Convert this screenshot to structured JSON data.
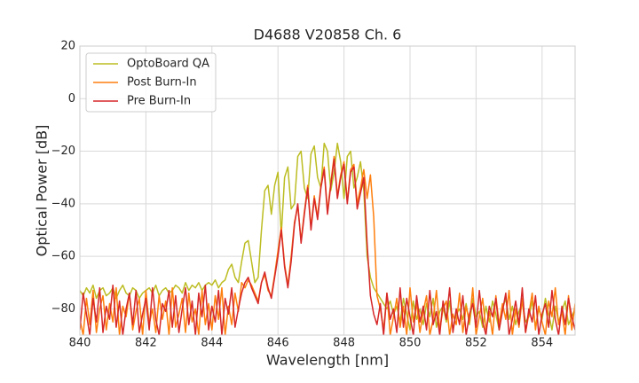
{
  "chart_data": {
    "type": "line",
    "title": "D4688 V20858 Ch. 6",
    "x_label": "Wavelength [nm]",
    "y_label": "Optical Power [dB]",
    "xlim": [
      840,
      855
    ],
    "ylim": [
      -90,
      20
    ],
    "xticks": [
      840,
      842,
      844,
      846,
      848,
      850,
      852,
      854
    ],
    "yticks": [
      {
        "value": -80,
        "label": "−80"
      },
      {
        "value": -60,
        "label": "−60"
      },
      {
        "value": -40,
        "label": "−40"
      },
      {
        "value": -20,
        "label": "−20"
      },
      0,
      20
    ],
    "grid": true,
    "legend": "upper left",
    "x": [
      840,
      840.1,
      840.2,
      840.3,
      840.4,
      840.5,
      840.6,
      840.7,
      840.8,
      840.9,
      841,
      841.1,
      841.2,
      841.3,
      841.4,
      841.5,
      841.6,
      841.7,
      841.8,
      841.9,
      842,
      842.1,
      842.2,
      842.3,
      842.4,
      842.5,
      842.6,
      842.7,
      842.8,
      842.9,
      843,
      843.1,
      843.2,
      843.3,
      843.4,
      843.5,
      843.6,
      843.7,
      843.8,
      843.9,
      844,
      844.1,
      844.2,
      844.3,
      844.4,
      844.5,
      844.6,
      844.7,
      844.8,
      844.9,
      845,
      845.1,
      845.2,
      845.3,
      845.4,
      845.5,
      845.6,
      845.7,
      845.8,
      845.9,
      846,
      846.1,
      846.2,
      846.3,
      846.4,
      846.5,
      846.6,
      846.7,
      846.8,
      846.9,
      847,
      847.1,
      847.2,
      847.3,
      847.4,
      847.5,
      847.6,
      847.7,
      847.8,
      847.9,
      848,
      848.1,
      848.2,
      848.3,
      848.4,
      848.5,
      848.6,
      848.7,
      848.8,
      848.9,
      849,
      849.1,
      849.2,
      849.3,
      849.4,
      849.5,
      849.6,
      849.7,
      849.8,
      849.9,
      850,
      850.1,
      850.2,
      850.3,
      850.4,
      850.5,
      850.6,
      850.7,
      850.8,
      850.9,
      851,
      851.1,
      851.2,
      851.3,
      851.4,
      851.5,
      851.6,
      851.7,
      851.8,
      851.9,
      852,
      852.1,
      852.2,
      852.3,
      852.4,
      852.5,
      852.6,
      852.7,
      852.8,
      852.9,
      853,
      853.1,
      853.2,
      853.3,
      853.4,
      853.5,
      853.6,
      853.7,
      853.8,
      853.9,
      854,
      854.1,
      854.2,
      854.3,
      854.4,
      854.5,
      854.6,
      854.7,
      854.8,
      854.9,
      855
    ],
    "series": [
      {
        "name": "OptoBoard QA",
        "color": "#bcbd22",
        "values": [
          -73,
          -75,
          -72,
          -74,
          -71,
          -76,
          -73,
          -72,
          -75,
          -74,
          -72,
          -76,
          -73,
          -71,
          -74,
          -75,
          -72,
          -73,
          -76,
          -74,
          -73,
          -72,
          -74,
          -71,
          -75,
          -73,
          -72,
          -74,
          -73,
          -71,
          -72,
          -74,
          -70,
          -73,
          -71,
          -72,
          -70,
          -73,
          -71,
          -70,
          -71,
          -69,
          -72,
          -70,
          -69,
          -65,
          -63,
          -68,
          -70,
          -62,
          -55,
          -54,
          -62,
          -70,
          -68,
          -50,
          -35,
          -33,
          -44,
          -33,
          -28,
          -52,
          -30,
          -26,
          -42,
          -40,
          -22,
          -20,
          -34,
          -38,
          -21,
          -18,
          -30,
          -34,
          -17,
          -20,
          -35,
          -28,
          -17,
          -24,
          -38,
          -22,
          -20,
          -34,
          -30,
          -24,
          -35,
          -60,
          -68,
          -72,
          -74,
          -76,
          -78,
          -80,
          -77,
          -82,
          -79,
          -85,
          -76,
          -82,
          -88,
          -77,
          -84,
          -80,
          -86,
          -78,
          -83,
          -76,
          -87,
          -81,
          -79,
          -85,
          -77,
          -88,
          -82,
          -80,
          -84,
          -78,
          -86,
          -76,
          -83,
          -81,
          -87,
          -79,
          -85,
          -77,
          -82,
          -88,
          -80,
          -76,
          -84,
          -79,
          -86,
          -81,
          -78,
          -85,
          -83,
          -77,
          -87,
          -80,
          -84,
          -76,
          -82,
          -88,
          -79,
          -85,
          -81,
          -77,
          -86,
          -83,
          -80
        ]
      },
      {
        "name": "Post Burn-In",
        "color": "#ff7f0e",
        "values": [
          -84,
          -90,
          -76,
          -86,
          -73,
          -89,
          -80,
          -75,
          -88,
          -78,
          -85,
          -72,
          -90,
          -79,
          -83,
          -74,
          -88,
          -81,
          -76,
          -90,
          -73,
          -86,
          -80,
          -89,
          -75,
          -84,
          -77,
          -90,
          -72,
          -87,
          -82,
          -76,
          -89,
          -74,
          -85,
          -80,
          -90,
          -73,
          -86,
          -78,
          -88,
          -75,
          -84,
          -72,
          -90,
          -79,
          -86,
          -74,
          -81,
          -70,
          -72,
          -69,
          -71,
          -74,
          -77,
          -70,
          -67,
          -73,
          -75,
          -67,
          -58,
          -49,
          -63,
          -71,
          -60,
          -47,
          -41,
          -54,
          -43,
          -33,
          -49,
          -37,
          -45,
          -33,
          -26,
          -43,
          -32,
          -22,
          -37,
          -29,
          -24,
          -39,
          -27,
          -25,
          -40,
          -34,
          -27,
          -38,
          -29,
          -45,
          -75,
          -80,
          -88,
          -74,
          -90,
          -83,
          -76,
          -87,
          -79,
          -90,
          -72,
          -85,
          -78,
          -89,
          -81,
          -75,
          -90,
          -84,
          -73,
          -88,
          -80,
          -77,
          -90,
          -82,
          -86,
          -74,
          -89,
          -79,
          -85,
          -72,
          -90,
          -83,
          -76,
          -88,
          -81,
          -90,
          -75,
          -86,
          -78,
          -84,
          -73,
          -90,
          -80,
          -87,
          -76,
          -89,
          -82,
          -74,
          -88,
          -79,
          -85,
          -90,
          -77,
          -83,
          -72,
          -86,
          -81,
          -90,
          -75,
          -88,
          -78
        ]
      },
      {
        "name": "Pre Burn-In",
        "color": "#d62728",
        "values": [
          -88,
          -74,
          -82,
          -90,
          -76,
          -85,
          -72,
          -89,
          -79,
          -84,
          -71,
          -87,
          -77,
          -90,
          -80,
          -74,
          -86,
          -73,
          -89,
          -82,
          -76,
          -88,
          -72,
          -84,
          -90,
          -78,
          -81,
          -73,
          -87,
          -75,
          -89,
          -80,
          -72,
          -86,
          -77,
          -90,
          -74,
          -83,
          -71,
          -88,
          -79,
          -85,
          -73,
          -90,
          -76,
          -82,
          -72,
          -87,
          -80,
          -74,
          -70,
          -68,
          -72,
          -75,
          -78,
          -70,
          -66,
          -72,
          -76,
          -68,
          -60,
          -50,
          -64,
          -72,
          -62,
          -48,
          -40,
          -55,
          -44,
          -34,
          -50,
          -38,
          -46,
          -34,
          -27,
          -44,
          -33,
          -23,
          -38,
          -30,
          -25,
          -40,
          -28,
          -26,
          -42,
          -36,
          -30,
          -55,
          -75,
          -82,
          -86,
          -78,
          -90,
          -74,
          -84,
          -80,
          -89,
          -72,
          -87,
          -76,
          -83,
          -90,
          -75,
          -85,
          -79,
          -88,
          -73,
          -86,
          -81,
          -90,
          -77,
          -84,
          -72,
          -89,
          -80,
          -86,
          -75,
          -90,
          -82,
          -78,
          -87,
          -73,
          -85,
          -90,
          -79,
          -83,
          -76,
          -88,
          -81,
          -74,
          -90,
          -84,
          -77,
          -86,
          -72,
          -89,
          -80,
          -85,
          -75,
          -90,
          -82,
          -78,
          -87,
          -73,
          -84,
          -90,
          -79,
          -86,
          -76,
          -83,
          -88
        ]
      }
    ]
  }
}
